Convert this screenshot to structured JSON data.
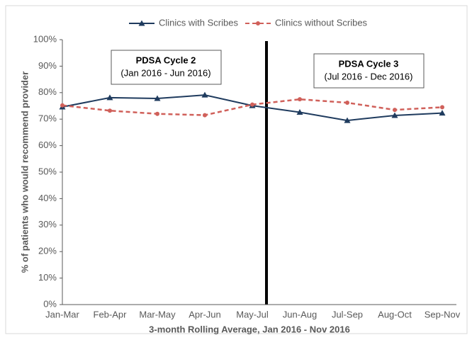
{
  "chart_data": {
    "type": "line",
    "x_label": "3-month Rolling Average, Jan 2016 - Nov 2016",
    "y_label": "% of patients who would recommend provider",
    "categories": [
      "Jan-Mar",
      "Feb-Apr",
      "Mar-May",
      "Apr-Jun",
      "May-Jul",
      "Jun-Aug",
      "Jul-Sep",
      "Aug-Oct",
      "Sep-Nov"
    ],
    "series": [
      {
        "name": "Clinics with Scribes",
        "color": "#1f3b5e",
        "marker": "triangle",
        "dashed": false,
        "values": [
          74.6,
          78.1,
          77.8,
          79.1,
          75.1,
          72.6,
          69.5,
          71.4,
          72.3
        ]
      },
      {
        "name": "Clinics without Scribes",
        "color": "#d0605a",
        "marker": "circle",
        "dashed": true,
        "values": [
          75.2,
          73.2,
          72.0,
          71.5,
          75.5,
          77.5,
          76.2,
          73.5,
          74.5
        ]
      }
    ],
    "ylim": [
      0,
      100
    ],
    "yticks": [
      {
        "value": 0,
        "label": "0%"
      },
      {
        "value": 10,
        "label": "10%"
      },
      {
        "value": 20,
        "label": "20%"
      },
      {
        "value": 30,
        "label": "30%"
      },
      {
        "value": 40,
        "label": "40%"
      },
      {
        "value": 50,
        "label": "50%"
      },
      {
        "value": 60,
        "label": "60%"
      },
      {
        "value": 70,
        "label": "70%"
      },
      {
        "value": 80,
        "label": "80%"
      },
      {
        "value": 90,
        "label": "90%"
      },
      {
        "value": 100,
        "label": "100%"
      }
    ],
    "legend": "top",
    "annotations": [
      {
        "title": "PDSA Cycle 2",
        "text": "(Jan 2016 - Jun 2016)"
      },
      {
        "title": "PDSA Cycle 3",
        "text": "(Jul 2016 - Dec 2016)"
      }
    ]
  }
}
